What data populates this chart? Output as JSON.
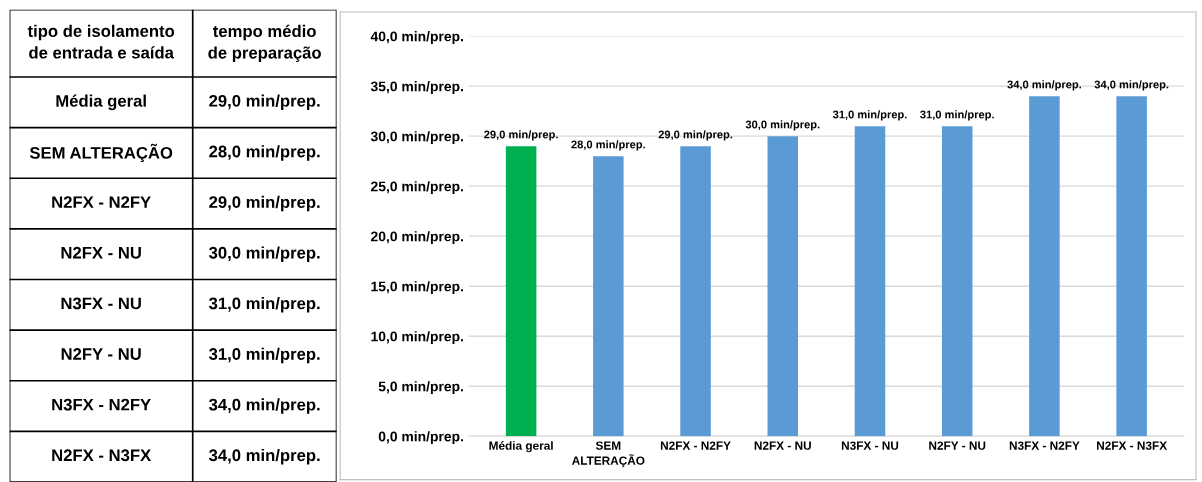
{
  "chart_data": {
    "type": "bar",
    "categories": [
      "Média geral",
      "SEM ALTERAÇÃO",
      "N2FX - N2FY",
      "N2FX - NU",
      "N3FX - NU",
      "N2FY - NU",
      "N3FX - N2FY",
      "N2FX - N3FX"
    ],
    "values": [
      29.0,
      28.0,
      29.0,
      30.0,
      31.0,
      31.0,
      34.0,
      34.0
    ],
    "colors": [
      "#00b050",
      "#5b9bd5",
      "#5b9bd5",
      "#5b9bd5",
      "#5b9bd5",
      "#5b9bd5",
      "#5b9bd5",
      "#5b9bd5"
    ],
    "value_labels": [
      "29,0 min/prep.",
      "28,0 min/prep.",
      "29,0 min/prep.",
      "30,0 min/prep.",
      "31,0 min/prep.",
      "31,0 min/prep.",
      "34,0 min/prep.",
      "34,0 min/prep."
    ],
    "ylim": [
      0,
      40
    ],
    "yticks": [
      {
        "value": 0,
        "label": "0,0 min/prep."
      },
      {
        "value": 5,
        "label": "5,0 min/prep."
      },
      {
        "value": 10,
        "label": "10,0 min/prep."
      },
      {
        "value": 15,
        "label": "15,0 min/prep."
      },
      {
        "value": 20,
        "label": "20,0 min/prep."
      },
      {
        "value": 25,
        "label": "25,0 min/prep."
      },
      {
        "value": 30,
        "label": "30,0 min/prep."
      },
      {
        "value": 35,
        "label": "35,0 min/prep."
      },
      {
        "value": 40,
        "label": "40,0 min/prep."
      }
    ],
    "grid": "y",
    "legend": false,
    "annotations": [
      "tipo de isolamento\nde entrada e saída",
      "tempo médio\nde preparação"
    ]
  }
}
